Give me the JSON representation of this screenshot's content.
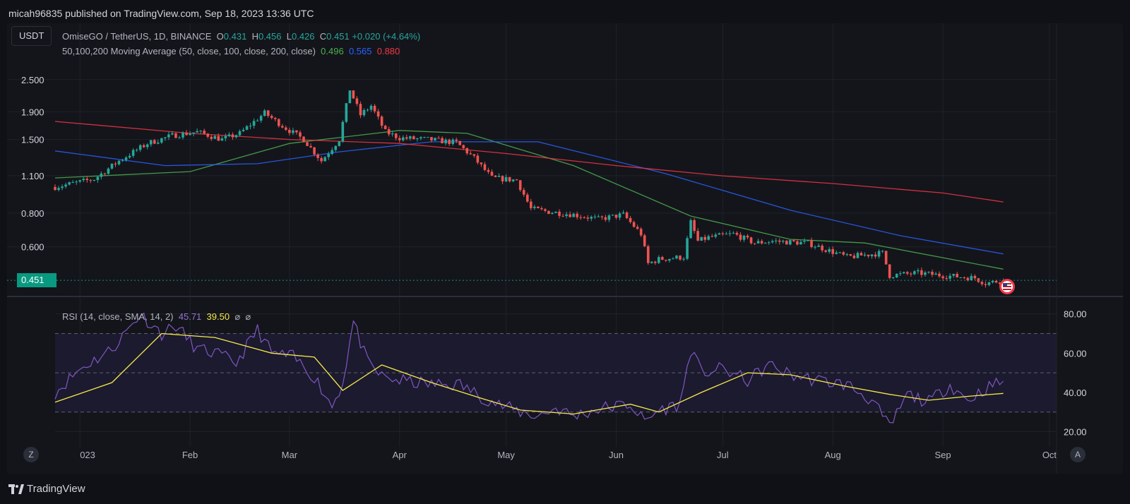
{
  "header": {
    "published_by": "micah96835 published on TradingView.com, Sep 18, 2023 13:36 UTC"
  },
  "toolbar": {
    "currency_button": "USDT"
  },
  "legend": {
    "symbol": "OmiseGO / TetherUS, 1D, BINANCE",
    "o_label": "O",
    "o_value": "0.431",
    "h_label": "H",
    "h_value": "0.456",
    "l_label": "L",
    "l_value": "0.426",
    "c_label": "C",
    "c_value": "0.451",
    "change": "+0.020 (+4.64%)",
    "ma_label": "50,100,200 Moving Average (50, close, 100, close, 200, close)",
    "ma50_value": "0.496",
    "ma100_value": "0.565",
    "ma200_value": "0.880",
    "rsi_label": "RSI (14, close, SMA, 14, 2)",
    "rsi_value": "45.71",
    "rsi_sma_value": "39.50",
    "icon1": "⌀",
    "icon2": "⌀"
  },
  "price_tag": "0.451",
  "footer": {
    "brand": "TradingView",
    "z_button": "Z",
    "a_button": "A"
  },
  "colors": {
    "up": "#26a69a",
    "down": "#ef5350",
    "ma50": "#4caf50",
    "ma100": "#2962ff",
    "ma200": "#f23645",
    "rsi": "#7e57c2",
    "rsi_sma": "#f5e94b"
  },
  "chart_data": {
    "type": "candlestick",
    "price_axis_scale": "log",
    "price_ticks": [
      "2.500",
      "1.900",
      "1.500",
      "1.100",
      "0.800",
      "0.600"
    ],
    "price_tick_values": [
      2.5,
      1.9,
      1.5,
      1.1,
      0.8,
      0.6
    ],
    "price_ylim": [
      0.43,
      2.85
    ],
    "x_start": "2022-12-25",
    "x_end": "2023-10-03",
    "x_ticks": [
      "023",
      "Feb",
      "Mar",
      "Apr",
      "May",
      "Jun",
      "Jul",
      "Aug",
      "Sep",
      "Oct"
    ],
    "x_tick_dates": [
      "2023-01-01",
      "2023-02-01",
      "2023-03-01",
      "2023-04-01",
      "2023-05-01",
      "2023-06-01",
      "2023-07-01",
      "2023-08-01",
      "2023-09-01",
      "2023-10-01"
    ],
    "price_anchors": {
      "dates": [
        "2022-12-25",
        "2023-01-05",
        "2023-01-12",
        "2023-01-20",
        "2023-01-27",
        "2023-02-03",
        "2023-02-10",
        "2023-02-15",
        "2023-02-22",
        "2023-02-28",
        "2023-03-05",
        "2023-03-10",
        "2023-03-15",
        "2023-03-18",
        "2023-03-21",
        "2023-03-24",
        "2023-03-28",
        "2023-04-01",
        "2023-04-09",
        "2023-04-17",
        "2023-04-22",
        "2023-04-27",
        "2023-05-04",
        "2023-05-08",
        "2023-05-13",
        "2023-05-20",
        "2023-05-27",
        "2023-06-03",
        "2023-06-08",
        "2023-06-10",
        "2023-06-13",
        "2023-06-20",
        "2023-06-22",
        "2023-06-24",
        "2023-06-27",
        "2023-07-04",
        "2023-07-10",
        "2023-07-15",
        "2023-07-25",
        "2023-08-05",
        "2023-08-15",
        "2023-08-17",
        "2023-08-25",
        "2023-09-01",
        "2023-09-10",
        "2023-09-13",
        "2023-09-18"
      ],
      "close": [
        1.0,
        1.07,
        1.25,
        1.45,
        1.55,
        1.6,
        1.5,
        1.58,
        1.88,
        1.65,
        1.5,
        1.25,
        1.5,
        2.3,
        1.85,
        2.0,
        1.6,
        1.52,
        1.5,
        1.46,
        1.28,
        1.08,
        1.06,
        0.83,
        0.81,
        0.79,
        0.76,
        0.79,
        0.67,
        0.52,
        0.54,
        0.55,
        0.74,
        0.63,
        0.65,
        0.67,
        0.62,
        0.63,
        0.62,
        0.55,
        0.57,
        0.47,
        0.48,
        0.47,
        0.46,
        0.44,
        0.451
      ]
    },
    "moving_averages": [
      {
        "name": "MA 50",
        "dates": [
          "2022-12-25",
          "2023-02-01",
          "2023-03-01",
          "2023-04-01",
          "2023-04-20",
          "2023-05-20",
          "2023-06-22",
          "2023-07-20",
          "2023-08-10",
          "2023-09-18"
        ],
        "values": [
          1.08,
          1.14,
          1.45,
          1.62,
          1.58,
          1.2,
          0.78,
          0.64,
          0.62,
          0.496
        ]
      },
      {
        "name": "MA 100",
        "dates": [
          "2022-12-25",
          "2023-01-25",
          "2023-02-20",
          "2023-03-15",
          "2023-04-10",
          "2023-05-10",
          "2023-06-15",
          "2023-07-20",
          "2023-08-20",
          "2023-09-18"
        ],
        "values": [
          1.36,
          1.2,
          1.22,
          1.35,
          1.47,
          1.47,
          1.12,
          0.82,
          0.66,
          0.565
        ]
      },
      {
        "name": "MA 200",
        "dates": [
          "2022-12-25",
          "2023-02-01",
          "2023-03-01",
          "2023-04-01",
          "2023-05-01",
          "2023-06-01",
          "2023-07-01",
          "2023-08-01",
          "2023-09-01",
          "2023-09-18"
        ],
        "values": [
          1.75,
          1.58,
          1.5,
          1.45,
          1.33,
          1.2,
          1.1,
          1.03,
          0.95,
          0.88
        ]
      }
    ],
    "rsi": {
      "ticks": [
        "80.00",
        "60.00",
        "40.00",
        "20.00"
      ],
      "tick_values": [
        80,
        60,
        40,
        20
      ],
      "ylim": [
        13,
        86
      ],
      "bands": [
        70,
        50,
        30
      ],
      "dates": [
        "2022-12-25",
        "2023-01-01",
        "2023-01-10",
        "2023-01-18",
        "2023-01-24",
        "2023-01-28",
        "2023-02-03",
        "2023-02-08",
        "2023-02-14",
        "2023-02-20",
        "2023-02-24",
        "2023-03-02",
        "2023-03-08",
        "2023-03-13",
        "2023-03-16",
        "2023-03-19",
        "2023-03-23",
        "2023-03-27",
        "2023-04-01",
        "2023-04-10",
        "2023-04-18",
        "2023-04-24",
        "2023-04-30",
        "2023-05-05",
        "2023-05-10",
        "2023-05-15",
        "2023-05-20",
        "2023-05-28",
        "2023-06-05",
        "2023-06-09",
        "2023-06-13",
        "2023-06-19",
        "2023-06-22",
        "2023-06-25",
        "2023-07-01",
        "2023-07-08",
        "2023-07-14",
        "2023-07-20",
        "2023-07-28",
        "2023-08-05",
        "2023-08-12",
        "2023-08-17",
        "2023-08-22",
        "2023-08-28",
        "2023-09-03",
        "2023-09-08",
        "2023-09-13",
        "2023-09-18"
      ],
      "values": [
        40,
        52,
        62,
        80,
        70,
        74,
        62,
        60,
        55,
        72,
        60,
        58,
        48,
        33,
        45,
        76,
        55,
        48,
        46,
        44,
        44,
        38,
        33,
        30,
        28,
        32,
        28,
        32,
        34,
        25,
        31,
        34,
        62,
        50,
        52,
        46,
        54,
        49,
        46,
        44,
        36,
        22,
        39,
        35,
        44,
        36,
        42,
        45.71
      ],
      "sma_dates": [
        "2022-12-25",
        "2023-01-10",
        "2023-01-24",
        "2023-02-08",
        "2023-02-24",
        "2023-03-08",
        "2023-03-16",
        "2023-03-27",
        "2023-04-10",
        "2023-04-24",
        "2023-05-05",
        "2023-05-20",
        "2023-06-05",
        "2023-06-13",
        "2023-06-25",
        "2023-07-08",
        "2023-07-20",
        "2023-08-05",
        "2023-08-17",
        "2023-08-28",
        "2023-09-08",
        "2023-09-18"
      ],
      "sma_values": [
        35,
        45,
        70,
        68,
        60,
        58,
        41,
        54,
        45,
        37,
        31,
        29,
        34,
        30,
        40,
        50,
        49,
        43,
        39,
        36,
        38,
        39.5
      ]
    }
  }
}
